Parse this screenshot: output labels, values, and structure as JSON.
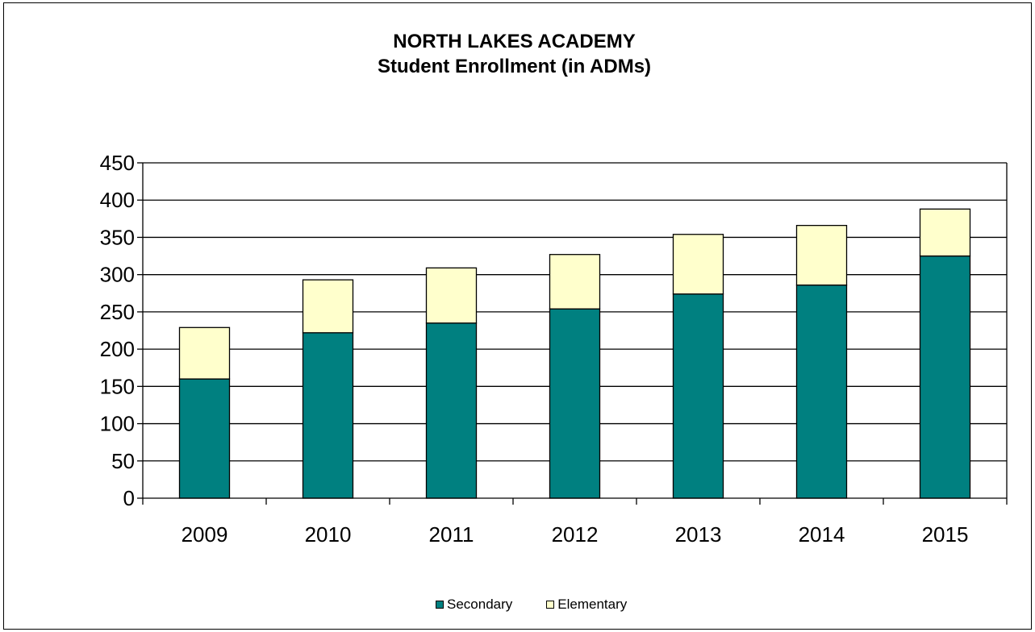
{
  "chart_data": {
    "type": "bar",
    "stacked": true,
    "title": [
      "NORTH LAKES ACADEMY",
      "Student Enrollment (in ADMs)"
    ],
    "xlabel": "",
    "ylabel": "",
    "categories": [
      "2009",
      "2010",
      "2011",
      "2012",
      "2013",
      "2014",
      "2015"
    ],
    "series": [
      {
        "name": "Secondary",
        "color": "#008080",
        "values": [
          160,
          222,
          235,
          254,
          274,
          286,
          325
        ]
      },
      {
        "name": "Elementary",
        "color": "#FFFFCC",
        "values": [
          69,
          71,
          74,
          73,
          80,
          80,
          63
        ]
      }
    ],
    "ylim": [
      0,
      450
    ],
    "yticks": [
      "0",
      "50",
      "100",
      "150",
      "200",
      "250",
      "300",
      "350",
      "400",
      "450"
    ],
    "grid": true,
    "legend_position": "bottom"
  }
}
